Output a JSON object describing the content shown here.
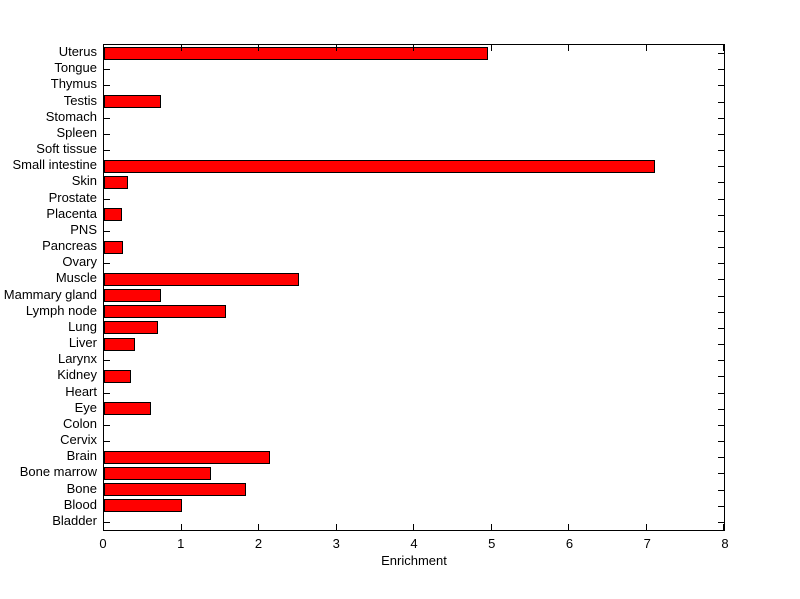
{
  "figure": {
    "background_color": "#ffffff",
    "plot_background_color": "#ffffff",
    "axis_color": "#000000",
    "bar_fill_color": "#ff0000",
    "bar_edge_color": "#000000"
  },
  "chart_data": {
    "type": "bar",
    "orientation": "horizontal",
    "title": "",
    "xlabel": "Enrichment",
    "ylabel": "",
    "xlim": [
      0,
      8
    ],
    "xticks": [
      0,
      1,
      2,
      3,
      4,
      5,
      6,
      7,
      8
    ],
    "grid": false,
    "categories": [
      "Uterus",
      "Tongue",
      "Thymus",
      "Testis",
      "Stomach",
      "Spleen",
      "Soft tissue",
      "Small intestine",
      "Skin",
      "Prostate",
      "Placenta",
      "PNS",
      "Pancreas",
      "Ovary",
      "Muscle",
      "Mammary gland",
      "Lymph node",
      "Lung",
      "Liver",
      "Larynx",
      "Kidney",
      "Heart",
      "Eye",
      "Colon",
      "Cervix",
      "Brain",
      "Bone marrow",
      "Bone",
      "Blood",
      "Bladder"
    ],
    "values": [
      4.96,
      0,
      0,
      0.74,
      0,
      0,
      0,
      7.11,
      0.31,
      0,
      0.23,
      0,
      0.25,
      0,
      2.51,
      0.73,
      1.57,
      0.7,
      0.4,
      0,
      0.35,
      0,
      0.61,
      0,
      0,
      2.14,
      1.38,
      1.83,
      1.0,
      0
    ]
  }
}
